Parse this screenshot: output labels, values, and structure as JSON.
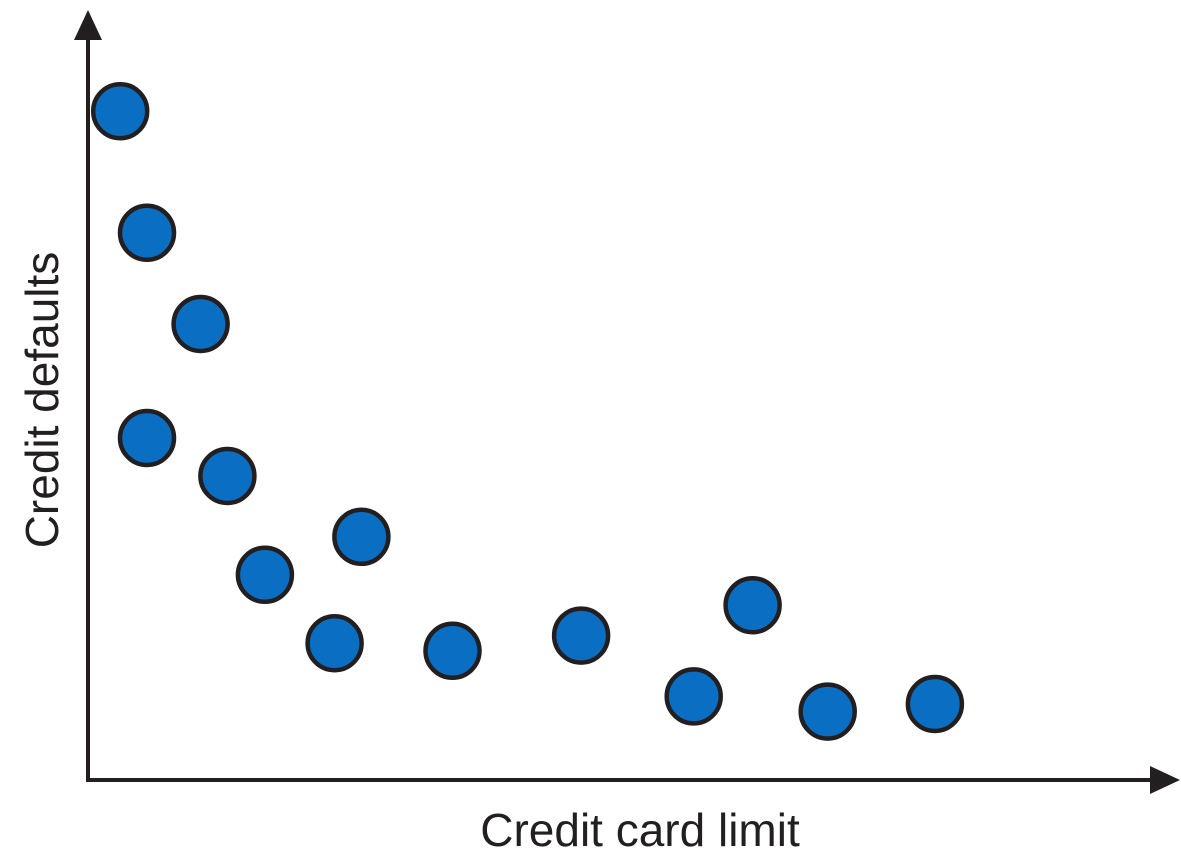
{
  "chart_data": {
    "type": "scatter",
    "title": "",
    "xlabel": "Credit card limit",
    "ylabel": "Credit defaults",
    "xlim": [
      0,
      100
    ],
    "ylim": [
      0,
      100
    ],
    "grid": false,
    "legend": "none",
    "tick_labels": false,
    "point_color": "#0a6fc2",
    "point_outline_color": "#231f20",
    "axis_color": "#231f20",
    "points": [
      {
        "x": 3,
        "y": 88
      },
      {
        "x": 5.5,
        "y": 72
      },
      {
        "x": 10.5,
        "y": 60
      },
      {
        "x": 5.5,
        "y": 45
      },
      {
        "x": 13,
        "y": 40
      },
      {
        "x": 16.5,
        "y": 27
      },
      {
        "x": 25.5,
        "y": 32
      },
      {
        "x": 23,
        "y": 18
      },
      {
        "x": 34,
        "y": 17
      },
      {
        "x": 46,
        "y": 19
      },
      {
        "x": 56.5,
        "y": 11
      },
      {
        "x": 62,
        "y": 23
      },
      {
        "x": 69,
        "y": 9
      },
      {
        "x": 79,
        "y": 10
      }
    ]
  }
}
